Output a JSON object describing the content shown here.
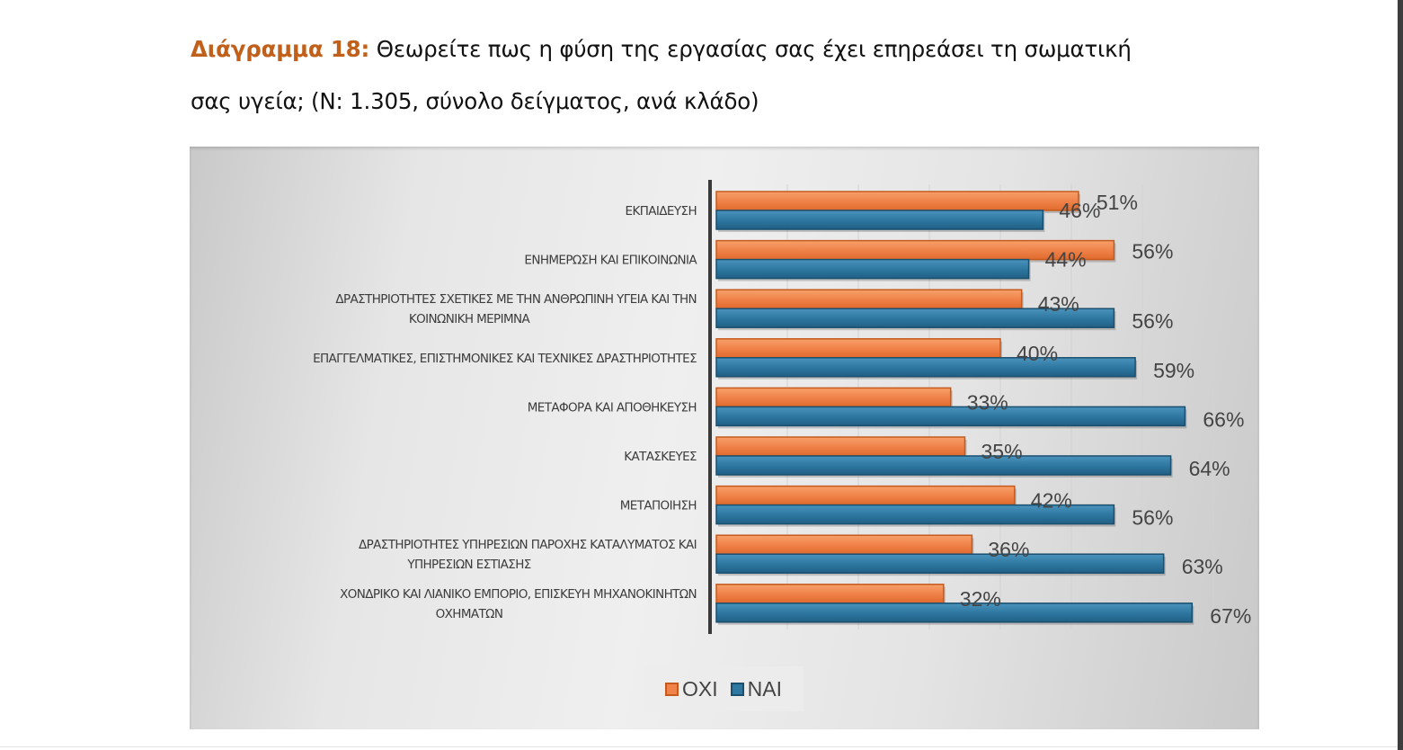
{
  "caption": {
    "label": "Διάγραμμα 18:",
    "text_line1": " Θεωρείτε πως η φύση της εργασίας σας έχει επηρεάσει τη σωματική",
    "text_line2": "σας υγεία; (Ν: 1.305, σύνολο δείγματος, ανά κλάδο)"
  },
  "colors": {
    "caption_label": "#c0601a",
    "oxi": "#f0834a",
    "oxi_border": "#c55a1c",
    "nai": "#2e78a2",
    "nai_border": "#1b4f6e"
  },
  "chart_data": {
    "type": "bar",
    "orientation": "horizontal",
    "title": "Θεωρείτε πως η φύση της εργασίας σας έχει επηρεάσει τη σωματική σας υγεία; (Ν: 1.305, σύνολο δείγματος, ανά κλάδο)",
    "xlabel": "",
    "ylabel": "",
    "xlim": [
      0,
      70
    ],
    "grid": true,
    "legend_position": "bottom",
    "value_suffix": "%",
    "categories": [
      [
        "ΕΚΠΑΙΔΕΥΣΗ"
      ],
      [
        "ΕΝΗΜΕΡΩΣΗ ΚΑΙ ΕΠΙΚΟΙΝΩΝΙΑ"
      ],
      [
        "ΔΡΑΣΤΗΡΙΟΤΗΤΕΣ ΣΧΕΤΙΚΕΣ ΜΕ ΤΗΝ ΑΝΘΡΩΠΙΝΗ ΥΓΕΙΑ ΚΑΙ ΤΗΝ",
        "ΚΟΙΝΩΝΙΚΗ ΜΕΡΙΜΝΑ"
      ],
      [
        "ΕΠΑΓΓΕΛΜΑΤΙΚΕΣ, ΕΠΙΣΤΗΜΟΝΙΚΕΣ ΚΑΙ ΤΕΧΝΙΚΕΣ ΔΡΑΣΤΗΡΙΟΤΗΤΕΣ"
      ],
      [
        "ΜΕΤΑΦΟΡΑ ΚΑΙ ΑΠΟΘΗΚΕΥΣΗ"
      ],
      [
        "ΚΑΤΑΣΚΕΥΕΣ"
      ],
      [
        "ΜΕΤΑΠΟΙΗΣΗ"
      ],
      [
        "ΔΡΑΣΤΗΡΙΟΤΗΤΕΣ ΥΠΗΡΕΣΙΩΝ ΠΑΡΟΧΗΣ ΚΑΤΑΛΥΜΑΤΟΣ ΚΑΙ",
        "ΥΠΗΡΕΣΙΩΝ ΕΣΤΙΑΣΗΣ"
      ],
      [
        "ΧΟΝΔΡΙΚΟ ΚΑΙ ΛΙΑΝΙΚΟ ΕΜΠΟΡΙΟ, ΕΠΙΣΚΕΥΗ ΜΗΧΑΝΟΚΙΝΗΤΩΝ",
        "ΟΧΗΜΑΤΩΝ"
      ]
    ],
    "series": [
      {
        "name": "ΟΧΙ",
        "values": [
          51,
          56,
          43,
          40,
          33,
          35,
          42,
          36,
          32
        ]
      },
      {
        "name": "ΝΑΙ",
        "values": [
          46,
          44,
          56,
          59,
          66,
          64,
          56,
          63,
          67
        ]
      }
    ]
  },
  "legend": {
    "items": [
      {
        "label": "ΟΧΙ"
      },
      {
        "label": "ΝΑΙ"
      }
    ]
  }
}
